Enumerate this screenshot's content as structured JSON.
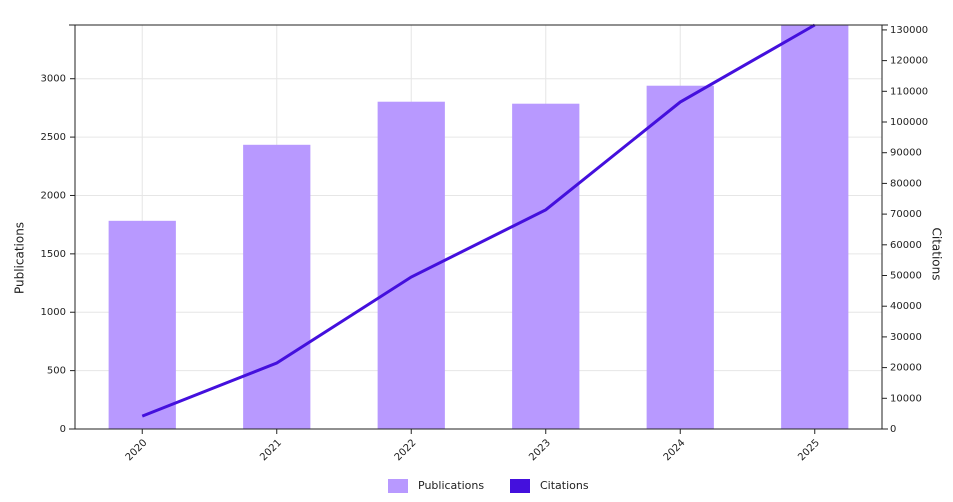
{
  "chart_data": {
    "type": "bar_line",
    "categories": [
      "2020",
      "2021",
      "2022",
      "2023",
      "2024",
      "2025"
    ],
    "series": [
      {
        "name": "Publications",
        "type": "bar",
        "color": "#b899ff",
        "values": [
          1783,
          2434,
          2803,
          2786,
          2940,
          3460
        ]
      },
      {
        "name": "Citations",
        "type": "line",
        "axis": "y2",
        "color": "#4410dd",
        "values": [
          4200,
          21500,
          49500,
          71400,
          106500,
          131600
        ]
      }
    ],
    "ylabel": "Publications",
    "y2label": "Citations",
    "ylim": [
      0,
      3460
    ],
    "yticks": [
      0,
      500,
      1000,
      1500,
      2000,
      2500,
      3000
    ],
    "y2lim": [
      0,
      131600
    ],
    "y2ticks": [
      0,
      10000,
      20000,
      30000,
      40000,
      50000,
      60000,
      70000,
      80000,
      90000,
      100000,
      110000,
      120000,
      130000
    ],
    "grid": true,
    "legend": "bottom"
  }
}
